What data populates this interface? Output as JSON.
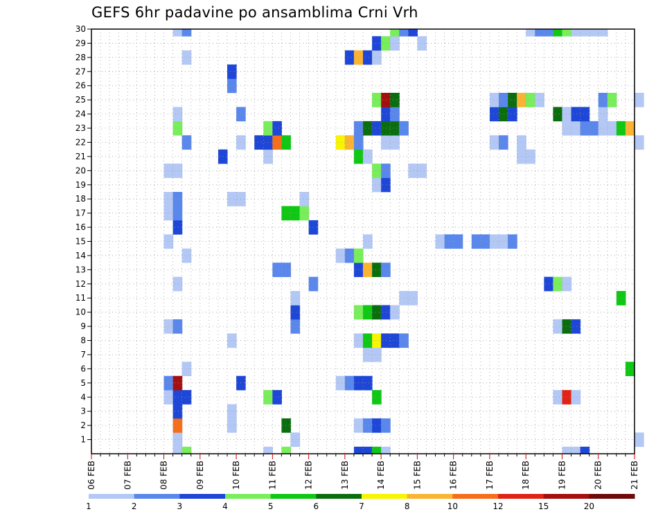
{
  "title": "GEFS 6hr padavine po ansamblima Crni Vrh",
  "chart_data": {
    "type": "heatmap",
    "title": "GEFS 6hr padavine po ansamblima Crni Vrh",
    "x_tick_labels": [
      "06 FEB",
      "07 FEB",
      "08 FEB",
      "09 FEB",
      "10 FEB",
      "11 FEB",
      "12 FEB",
      "13 FEB",
      "14 FEB",
      "15 FEB",
      "16 FEB",
      "17 FEB",
      "18 FEB",
      "19 FEB",
      "20 FEB",
      "21 FEB"
    ],
    "y_tick_labels": [
      "1",
      "2",
      "3",
      "4",
      "5",
      "6",
      "7",
      "8",
      "9",
      "10",
      "11",
      "12",
      "13",
      "14",
      "15",
      "16",
      "17",
      "18",
      "19",
      "20",
      "21",
      "22",
      "23",
      "24",
      "25",
      "26",
      "27",
      "28",
      "29",
      "30"
    ],
    "xlim": [
      "06 FEB",
      "21 FEB"
    ],
    "ylim": [
      0,
      30
    ],
    "time_step_hours": 6,
    "grid": true,
    "colorbar": {
      "labels": [
        "1",
        "2",
        "3",
        "4",
        "5",
        "6",
        "7",
        "8",
        "10",
        "12",
        "15",
        "20"
      ],
      "colors": [
        "#b4c8f5",
        "#5a87ec",
        "#1e46d7",
        "#78ee5a",
        "#0ec814",
        "#0a6e0f",
        "#f8f500",
        "#fab432",
        "#f56e1a",
        "#e12316",
        "#a50f0f",
        "#6e0a0a"
      ]
    },
    "cells": [
      [
        "08.25",
        "0",
        0
      ],
      [
        "08.5",
        "0",
        3
      ],
      [
        "10.75",
        "0",
        0
      ],
      [
        "11.25",
        "0",
        3
      ],
      [
        "13.25",
        "0",
        2
      ],
      [
        "13.5",
        "0",
        2
      ],
      [
        "13.75",
        "0",
        4
      ],
      [
        "14",
        "0",
        0
      ],
      [
        "19",
        "0",
        0
      ],
      [
        "19.25",
        "0",
        0
      ],
      [
        "19.5",
        "0",
        2
      ],
      [
        "08.25",
        "1",
        0
      ],
      [
        "11.5",
        "1",
        0
      ],
      [
        "21",
        "1",
        0
      ],
      [
        "13.25",
        "2",
        0
      ],
      [
        "13.5",
        "2",
        1
      ],
      [
        "13.75",
        "2",
        2
      ],
      [
        "14",
        "2",
        1
      ],
      [
        "08.25",
        "2",
        8
      ],
      [
        "09.75",
        "2",
        0
      ],
      [
        "11.25",
        "2",
        5
      ],
      [
        "08.25",
        "3",
        2
      ],
      [
        "09.75",
        "3",
        0
      ],
      [
        "08",
        "4",
        0
      ],
      [
        "08.25",
        "4",
        2
      ],
      [
        "08.5",
        "4",
        2
      ],
      [
        "10.75",
        "4",
        3
      ],
      [
        "11",
        "4",
        2
      ],
      [
        "13.75",
        "4",
        4
      ],
      [
        "18.75",
        "4",
        0
      ],
      [
        "19",
        "4",
        9
      ],
      [
        "19.25",
        "4",
        0
      ],
      [
        "08",
        "5",
        1
      ],
      [
        "08.25",
        "5",
        10
      ],
      [
        "10",
        "5",
        2
      ],
      [
        "12.75",
        "5",
        0
      ],
      [
        "13",
        "5",
        1
      ],
      [
        "13.25",
        "5",
        2
      ],
      [
        "13.5",
        "5",
        2
      ],
      [
        "08.5",
        "6",
        0
      ],
      [
        "20.75",
        "6",
        4
      ],
      [
        "13.5",
        "7",
        0
      ],
      [
        "13.75",
        "7",
        0
      ],
      [
        "09.75",
        "8",
        0
      ],
      [
        "13.25",
        "8",
        0
      ],
      [
        "13.5",
        "8",
        4
      ],
      [
        "13.75",
        "8",
        6
      ],
      [
        "14",
        "8",
        2
      ],
      [
        "14.25",
        "8",
        2
      ],
      [
        "14.5",
        "8",
        1
      ],
      [
        "08",
        "9",
        0
      ],
      [
        "08.25",
        "9",
        1
      ],
      [
        "11.5",
        "9",
        1
      ],
      [
        "18.75",
        "9",
        0
      ],
      [
        "19",
        "9",
        5
      ],
      [
        "19.25",
        "9",
        2
      ],
      [
        "11.5",
        "10",
        2
      ],
      [
        "13.25",
        "10",
        3
      ],
      [
        "13.5",
        "10",
        4
      ],
      [
        "13.75",
        "10",
        5
      ],
      [
        "14",
        "10",
        2
      ],
      [
        "14.25",
        "10",
        0
      ],
      [
        "11.5",
        "11",
        0
      ],
      [
        "14.5",
        "11",
        0
      ],
      [
        "14.75",
        "11",
        0
      ],
      [
        "20.5",
        "11",
        4
      ],
      [
        "08.25",
        "12",
        0
      ],
      [
        "12",
        "12",
        1
      ],
      [
        "18.5",
        "12",
        2
      ],
      [
        "18.75",
        "12",
        3
      ],
      [
        "19",
        "12",
        0
      ],
      [
        "11",
        "13",
        1
      ],
      [
        "11.25",
        "13",
        1
      ],
      [
        "13.25",
        "13",
        2
      ],
      [
        "13.5",
        "13",
        7
      ],
      [
        "13.75",
        "13",
        5
      ],
      [
        "14",
        "13",
        1
      ],
      [
        "08.5",
        "14",
        0
      ],
      [
        "12.75",
        "14",
        0
      ],
      [
        "13",
        "14",
        1
      ],
      [
        "13.25",
        "14",
        3
      ],
      [
        "08",
        "15",
        0
      ],
      [
        "13.5",
        "15",
        0
      ],
      [
        "15.5",
        "15",
        0
      ],
      [
        "15.75",
        "15",
        1
      ],
      [
        "16",
        "15",
        1
      ],
      [
        "16.5",
        "15",
        1
      ],
      [
        "16.75",
        "15",
        1
      ],
      [
        "17",
        "15",
        0
      ],
      [
        "17.25",
        "15",
        0
      ],
      [
        "17.5",
        "15",
        1
      ],
      [
        "08.25",
        "16",
        2
      ],
      [
        "12",
        "16",
        2
      ],
      [
        "08",
        "17",
        0
      ],
      [
        "08.25",
        "17",
        1
      ],
      [
        "11.25",
        "17",
        4
      ],
      [
        "11.5",
        "17",
        4
      ],
      [
        "11.75",
        "17",
        3
      ],
      [
        "08",
        "18",
        0
      ],
      [
        "08.25",
        "18",
        1
      ],
      [
        "09.75",
        "18",
        0
      ],
      [
        "10",
        "18",
        0
      ],
      [
        "11.75",
        "18",
        0
      ],
      [
        "13.75",
        "19",
        0
      ],
      [
        "14",
        "19",
        2
      ],
      [
        "08",
        "20",
        0
      ],
      [
        "08.25",
        "20",
        0
      ],
      [
        "13.75",
        "20",
        3
      ],
      [
        "14",
        "20",
        1
      ],
      [
        "14.75",
        "20",
        0
      ],
      [
        "15",
        "20",
        0
      ],
      [
        "09.5",
        "21",
        2
      ],
      [
        "10.75",
        "21",
        0
      ],
      [
        "13.25",
        "21",
        4
      ],
      [
        "13.5",
        "21",
        0
      ],
      [
        "17.75",
        "21",
        0
      ],
      [
        "18",
        "21",
        0
      ],
      [
        "08.5",
        "22",
        1
      ],
      [
        "10",
        "22",
        0
      ],
      [
        "10.5",
        "22",
        2
      ],
      [
        "10.75",
        "22",
        2
      ],
      [
        "11",
        "22",
        8
      ],
      [
        "11.25",
        "22",
        4
      ],
      [
        "12.75",
        "22",
        6
      ],
      [
        "13",
        "22",
        7
      ],
      [
        "13.25",
        "22",
        1
      ],
      [
        "14",
        "22",
        0
      ],
      [
        "14.25",
        "22",
        0
      ],
      [
        "17",
        "22",
        0
      ],
      [
        "17.25",
        "22",
        1
      ],
      [
        "17.75",
        "22",
        0
      ],
      [
        "21",
        "22",
        0
      ],
      [
        "08.25",
        "23",
        3
      ],
      [
        "10.75",
        "23",
        3
      ],
      [
        "11",
        "23",
        2
      ],
      [
        "13.25",
        "23",
        1
      ],
      [
        "13.5",
        "23",
        5
      ],
      [
        "13.75",
        "23",
        2
      ],
      [
        "14",
        "23",
        5
      ],
      [
        "14.25",
        "23",
        5
      ],
      [
        "14.5",
        "23",
        1
      ],
      [
        "19",
        "23",
        0
      ],
      [
        "19.25",
        "23",
        0
      ],
      [
        "19.5",
        "23",
        1
      ],
      [
        "19.75",
        "23",
        1
      ],
      [
        "20",
        "23",
        0
      ],
      [
        "20.25",
        "23",
        0
      ],
      [
        "20.5",
        "23",
        4
      ],
      [
        "20.75",
        "23",
        7
      ],
      [
        "08.25",
        "24",
        0
      ],
      [
        "10",
        "24",
        1
      ],
      [
        "14",
        "24",
        2
      ],
      [
        "14.25",
        "24",
        1
      ],
      [
        "17",
        "24",
        2
      ],
      [
        "17.25",
        "24",
        5
      ],
      [
        "17.5",
        "24",
        2
      ],
      [
        "18.75",
        "24",
        5
      ],
      [
        "19",
        "24",
        0
      ],
      [
        "19.25",
        "24",
        2
      ],
      [
        "19.5",
        "24",
        2
      ],
      [
        "20",
        "24",
        0
      ],
      [
        "13.75",
        "25",
        3
      ],
      [
        "14",
        "25",
        10
      ],
      [
        "14.25",
        "25",
        5
      ],
      [
        "17",
        "25",
        0
      ],
      [
        "17.25",
        "25",
        1
      ],
      [
        "17.5",
        "25",
        5
      ],
      [
        "17.75",
        "25",
        7
      ],
      [
        "18",
        "25",
        3
      ],
      [
        "18.25",
        "25",
        0
      ],
      [
        "20",
        "25",
        1
      ],
      [
        "20.25",
        "25",
        3
      ],
      [
        "21",
        "25",
        0
      ],
      [
        "09.75",
        "26",
        1
      ],
      [
        "09.75",
        "27",
        2
      ],
      [
        "08.5",
        "28",
        0
      ],
      [
        "13",
        "28",
        2
      ],
      [
        "13.25",
        "28",
        7
      ],
      [
        "13.5",
        "28",
        2
      ],
      [
        "13.75",
        "28",
        0
      ],
      [
        "13.75",
        "29",
        2
      ],
      [
        "14",
        "29",
        3
      ],
      [
        "14.25",
        "29",
        0
      ],
      [
        "15",
        "29",
        0
      ],
      [
        "08.25",
        "30",
        0
      ],
      [
        "08.5",
        "30",
        1
      ],
      [
        "14.25",
        "30",
        3
      ],
      [
        "14.5",
        "30",
        1
      ],
      [
        "14.75",
        "30",
        2
      ],
      [
        "18",
        "30",
        0
      ],
      [
        "18.25",
        "30",
        1
      ],
      [
        "18.5",
        "30",
        1
      ],
      [
        "18.75",
        "30",
        4
      ],
      [
        "19",
        "30",
        3
      ],
      [
        "19.25",
        "30",
        0
      ],
      [
        "19.5",
        "30",
        0
      ],
      [
        "19.75",
        "30",
        0
      ],
      [
        "20",
        "30",
        0
      ]
    ]
  }
}
